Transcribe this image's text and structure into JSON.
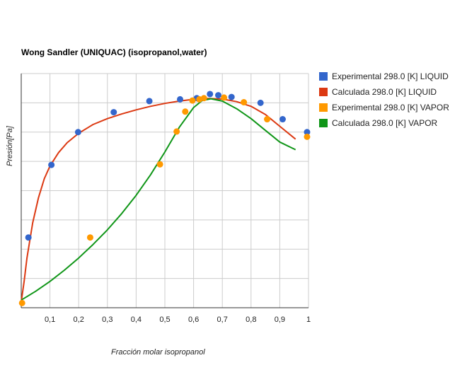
{
  "chart_data": {
    "type": "scatter",
    "title": "Wong Sandler (UNIQUAC) (isopropanol,water)",
    "xlabel": "Fracción molar isopropanol",
    "ylabel": "Presión[Pa]",
    "xlim": [
      0,
      1
    ],
    "ylim": [
      3000,
      7000
    ],
    "x_ticks": [
      "0,1",
      "0,2",
      "0,3",
      "0,4",
      "0,5",
      "0,6",
      "0,7",
      "0,8",
      "0,9",
      "1"
    ],
    "x_tick_values": [
      0.1,
      0.2,
      0.3,
      0.4,
      0.5,
      0.6,
      0.7,
      0.8,
      0.9,
      1.0
    ],
    "y_gridlines": [
      3000,
      3500,
      4000,
      4500,
      5000,
      5500,
      6000,
      6500,
      7000
    ],
    "grid": true,
    "legend_position": "right",
    "series": [
      {
        "name": "Experimental 298.0 [K]  LIQUID",
        "kind": "points",
        "color": "#3366cc",
        "points": [
          [
            0.025,
            4200
          ],
          [
            0.105,
            5440
          ],
          [
            0.198,
            6000
          ],
          [
            0.322,
            6340
          ],
          [
            0.446,
            6530
          ],
          [
            0.553,
            6560
          ],
          [
            0.611,
            6580
          ],
          [
            0.657,
            6650
          ],
          [
            0.686,
            6630
          ],
          [
            0.732,
            6600
          ],
          [
            0.833,
            6500
          ],
          [
            0.91,
            6220
          ],
          [
            0.995,
            6000
          ]
        ]
      },
      {
        "name": "Calculada 298.0 [K] LIQUID",
        "kind": "line",
        "color": "#dc3912",
        "points": [
          [
            0.0,
            3100
          ],
          [
            0.01,
            3450
          ],
          [
            0.02,
            3850
          ],
          [
            0.04,
            4450
          ],
          [
            0.06,
            4880
          ],
          [
            0.08,
            5200
          ],
          [
            0.1,
            5420
          ],
          [
            0.13,
            5650
          ],
          [
            0.16,
            5820
          ],
          [
            0.2,
            5980
          ],
          [
            0.25,
            6130
          ],
          [
            0.3,
            6230
          ],
          [
            0.35,
            6310
          ],
          [
            0.4,
            6380
          ],
          [
            0.45,
            6440
          ],
          [
            0.5,
            6490
          ],
          [
            0.55,
            6530
          ],
          [
            0.6,
            6560
          ],
          [
            0.65,
            6575
          ],
          [
            0.7,
            6565
          ],
          [
            0.75,
            6520
          ],
          [
            0.8,
            6440
          ],
          [
            0.85,
            6300
          ],
          [
            0.9,
            6100
          ],
          [
            0.955,
            5880
          ]
        ]
      },
      {
        "name": "Experimental 298.0 [K] VAPOR",
        "kind": "points",
        "color": "#ff9900",
        "points": [
          [
            0.003,
            3080
          ],
          [
            0.24,
            4200
          ],
          [
            0.483,
            5450
          ],
          [
            0.541,
            6010
          ],
          [
            0.571,
            6350
          ],
          [
            0.596,
            6540
          ],
          [
            0.62,
            6560
          ],
          [
            0.636,
            6580
          ],
          [
            0.706,
            6590
          ],
          [
            0.775,
            6510
          ],
          [
            0.856,
            6220
          ],
          [
            0.995,
            5920
          ]
        ]
      },
      {
        "name": "Calculada 298.0 [K] VAPOR",
        "kind": "line",
        "color": "#109618",
        "points": [
          [
            0.0,
            3130
          ],
          [
            0.05,
            3280
          ],
          [
            0.1,
            3450
          ],
          [
            0.15,
            3640
          ],
          [
            0.2,
            3850
          ],
          [
            0.25,
            4080
          ],
          [
            0.3,
            4330
          ],
          [
            0.35,
            4610
          ],
          [
            0.4,
            4920
          ],
          [
            0.45,
            5270
          ],
          [
            0.5,
            5660
          ],
          [
            0.55,
            6080
          ],
          [
            0.6,
            6420
          ],
          [
            0.63,
            6540
          ],
          [
            0.66,
            6570
          ],
          [
            0.7,
            6530
          ],
          [
            0.75,
            6400
          ],
          [
            0.8,
            6230
          ],
          [
            0.85,
            6030
          ],
          [
            0.9,
            5830
          ],
          [
            0.955,
            5700
          ]
        ]
      }
    ]
  }
}
